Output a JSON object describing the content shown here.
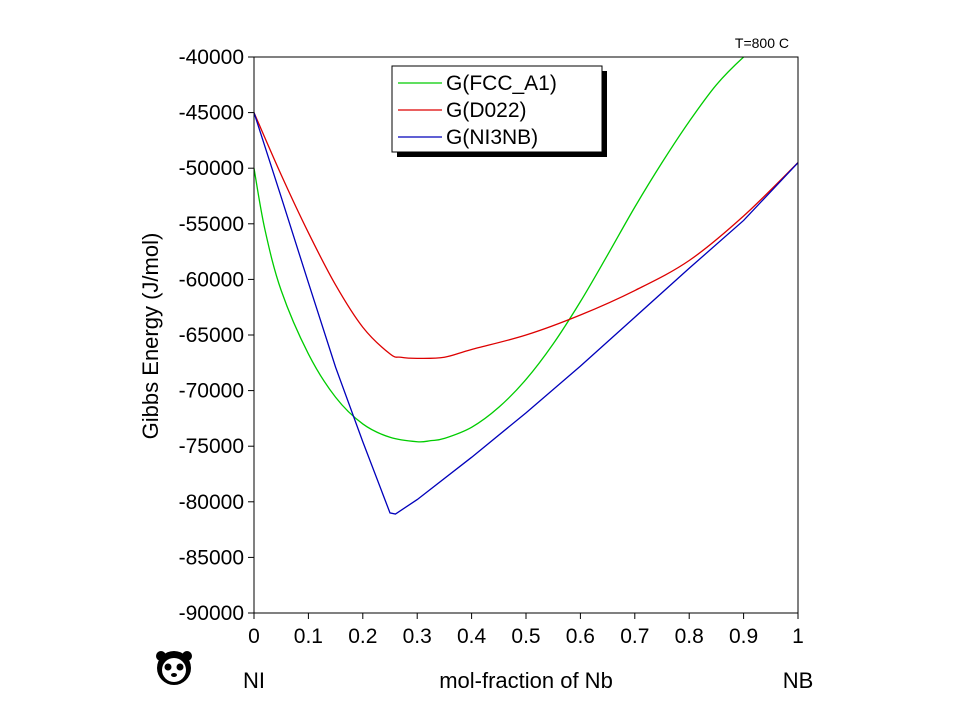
{
  "chart_data": {
    "type": "line",
    "title": "",
    "annotation": "T=800 C",
    "xlabel": "mol-fraction of Nb",
    "ylabel": "Gibbs Energy (J/mol)",
    "x_end_labels": {
      "left": "NI",
      "right": "NB"
    },
    "xlim": [
      0,
      1
    ],
    "ylim": [
      -90000,
      -40000
    ],
    "xticks": [
      0,
      0.1,
      0.2,
      0.3,
      0.4,
      0.5,
      0.6,
      0.7,
      0.8,
      0.9,
      1
    ],
    "xtick_labels": [
      "0",
      "0.1",
      "0.2",
      "0.3",
      "0.4",
      "0.5",
      "0.6",
      "0.7",
      "0.8",
      "0.9",
      "1"
    ],
    "yticks": [
      -40000,
      -45000,
      -50000,
      -55000,
      -60000,
      -65000,
      -70000,
      -75000,
      -80000,
      -85000,
      -90000
    ],
    "ytick_labels": [
      "-40000",
      "-45000",
      "-50000",
      "-55000",
      "-60000",
      "-65000",
      "-70000",
      "-75000",
      "-80000",
      "-85000",
      "-90000"
    ],
    "grid": false,
    "legend": {
      "position": "top-center",
      "shadow": true
    },
    "series": [
      {
        "name": "G(FCC_A1)",
        "color": "#00cc00",
        "x": [
          0,
          0.02,
          0.05,
          0.1,
          0.15,
          0.2,
          0.25,
          0.3,
          0.325,
          0.35,
          0.4,
          0.45,
          0.5,
          0.55,
          0.6,
          0.65,
          0.7,
          0.75,
          0.8,
          0.85,
          0.9,
          0.95,
          1
        ],
        "y": [
          -50000,
          -55500,
          -61000,
          -66700,
          -70600,
          -73000,
          -74200,
          -74600,
          -74500,
          -74300,
          -73300,
          -71500,
          -69000,
          -65800,
          -62000,
          -57800,
          -53500,
          -49500,
          -45800,
          -42500,
          -40000,
          -38000,
          -36000
        ]
      },
      {
        "name": "G(D022)",
        "color": "#dd0000",
        "x": [
          0,
          0.05,
          0.1,
          0.15,
          0.2,
          0.25,
          0.27,
          0.3,
          0.35,
          0.4,
          0.5,
          0.6,
          0.7,
          0.8,
          0.9,
          1
        ],
        "y": [
          -45000,
          -50600,
          -55800,
          -60500,
          -64300,
          -66700,
          -67000,
          -67100,
          -67000,
          -66300,
          -65000,
          -63200,
          -61000,
          -58300,
          -54300,
          -49500
        ]
      },
      {
        "name": "G(NI3NB)",
        "color": "#0000bb",
        "x": [
          0,
          0.05,
          0.1,
          0.15,
          0.2,
          0.25,
          0.26,
          0.3,
          0.4,
          0.5,
          0.6,
          0.7,
          0.8,
          0.9,
          1
        ],
        "y": [
          -45000,
          -52600,
          -60300,
          -67900,
          -74600,
          -81000,
          -81100,
          -79800,
          -76000,
          -72000,
          -67800,
          -63400,
          -59000,
          -54700,
          -49500
        ]
      }
    ]
  }
}
